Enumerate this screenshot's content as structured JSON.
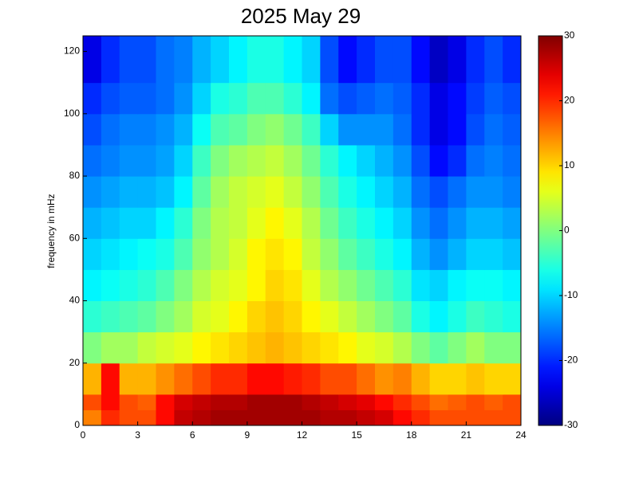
{
  "chart_data": {
    "type": "heatmap",
    "title": "2025 May 29",
    "ylabel": "frequency in mHz",
    "colormap": "jet",
    "x_edges": [
      0,
      1,
      2,
      3,
      4,
      5,
      6,
      7,
      8,
      9,
      10,
      11,
      12,
      13,
      14,
      15,
      16,
      17,
      18,
      19,
      20,
      21,
      22,
      23,
      24
    ],
    "y_edges": [
      0,
      5,
      10,
      20,
      30,
      40,
      50,
      60,
      70,
      80,
      90,
      100,
      110,
      125
    ],
    "z": [
      [
        15,
        20,
        18,
        18,
        22,
        26,
        27,
        28,
        28,
        28,
        28,
        28,
        28,
        27,
        27,
        26,
        25,
        22,
        20,
        18,
        18,
        18,
        18,
        18
      ],
      [
        18,
        22,
        18,
        17,
        22,
        25,
        26,
        27,
        27,
        28,
        28,
        28,
        27,
        26,
        25,
        24,
        22,
        20,
        18,
        16,
        17,
        18,
        17,
        18
      ],
      [
        12,
        22,
        12,
        12,
        14,
        16,
        18,
        20,
        20,
        22,
        22,
        21,
        20,
        18,
        18,
        16,
        14,
        15,
        12,
        10,
        10,
        11,
        10,
        10
      ],
      [
        0,
        2,
        2,
        4,
        5,
        6,
        8,
        9,
        10,
        11,
        12,
        11,
        10,
        9,
        8,
        6,
        5,
        3,
        0,
        -2,
        0,
        2,
        0,
        0
      ],
      [
        -5,
        -4,
        -3,
        -2,
        0,
        2,
        5,
        6,
        8,
        10,
        11,
        10,
        8,
        6,
        4,
        2,
        0,
        -2,
        -6,
        -8,
        -6,
        -4,
        -5,
        -6
      ],
      [
        -8,
        -7,
        -6,
        -5,
        -3,
        0,
        3,
        5,
        6,
        8,
        10,
        9,
        6,
        3,
        1,
        -1,
        -3,
        -5,
        -9,
        -10,
        -8,
        -7,
        -7,
        -8
      ],
      [
        -10,
        -9,
        -8,
        -7,
        -6,
        -3,
        1,
        3,
        5,
        8,
        9,
        8,
        4,
        1,
        -2,
        -4,
        -6,
        -8,
        -12,
        -14,
        -12,
        -10,
        -10,
        -11
      ],
      [
        -12,
        -11,
        -10,
        -10,
        -8,
        -5,
        0,
        3,
        4,
        6,
        8,
        6,
        3,
        -1,
        -4,
        -6,
        -8,
        -10,
        -14,
        -16,
        -14,
        -12,
        -12,
        -13
      ],
      [
        -14,
        -13,
        -12,
        -12,
        -11,
        -8,
        -2,
        2,
        4,
        5,
        6,
        4,
        1,
        -3,
        -6,
        -8,
        -10,
        -12,
        -16,
        -18,
        -16,
        -14,
        -14,
        -15
      ],
      [
        -16,
        -15,
        -14,
        -14,
        -13,
        -10,
        -4,
        0,
        2,
        3,
        4,
        2,
        -1,
        -5,
        -8,
        -10,
        -12,
        -14,
        -18,
        -22,
        -20,
        -16,
        -15,
        -16
      ],
      [
        -18,
        -16,
        -15,
        -15,
        -14,
        -12,
        -7,
        -3,
        -2,
        0,
        1,
        -1,
        -4,
        -10,
        -14,
        -14,
        -14,
        -16,
        -20,
        -24,
        -22,
        -18,
        -16,
        -17
      ],
      [
        -20,
        -18,
        -17,
        -17,
        -16,
        -14,
        -10,
        -6,
        -5,
        -3,
        -3,
        -5,
        -8,
        -16,
        -18,
        -17,
        -16,
        -17,
        -20,
        -24,
        -22,
        -19,
        -17,
        -18
      ],
      [
        -24,
        -20,
        -18,
        -18,
        -16,
        -15,
        -12,
        -10,
        -8,
        -6,
        -6,
        -8,
        -10,
        -18,
        -22,
        -20,
        -18,
        -18,
        -22,
        -26,
        -24,
        -20,
        -18,
        -20
      ]
    ],
    "xlim": [
      0,
      24
    ],
    "xticks": [
      0,
      3,
      6,
      9,
      12,
      15,
      18,
      21,
      24
    ],
    "ylim": [
      0,
      125
    ],
    "yticks": [
      0,
      20,
      40,
      60,
      80,
      100,
      120
    ],
    "clim": [
      -30,
      30
    ],
    "cticks": [
      -30,
      -20,
      -10,
      0,
      10,
      20,
      30
    ]
  }
}
